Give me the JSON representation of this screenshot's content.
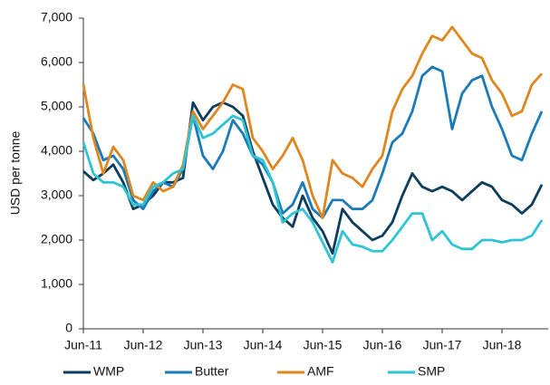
{
  "chart_data": {
    "type": "line",
    "y_label": "USD per tonne",
    "categories": [
      "Jun-11",
      null,
      null,
      null,
      null,
      null,
      "Jun-12",
      null,
      null,
      null,
      null,
      null,
      "Jun-13",
      null,
      null,
      null,
      null,
      null,
      "Jun-14",
      null,
      null,
      null,
      null,
      null,
      "Jun-15",
      null,
      null,
      null,
      null,
      null,
      "Jun-16",
      null,
      null,
      null,
      null,
      null,
      "Jun-17",
      null,
      null,
      null,
      null,
      null,
      "Jun-18",
      null,
      null,
      null,
      null
    ],
    "series": [
      {
        "name": "WMP",
        "color": "#0d3d5c",
        "values": [
          3550,
          3350,
          3500,
          3700,
          3300,
          2700,
          2800,
          3000,
          3300,
          3300,
          3400,
          5100,
          4700,
          5000,
          5100,
          5000,
          4800,
          4000,
          3400,
          2800,
          2500,
          2300,
          3000,
          2500,
          2200,
          1700,
          2700,
          2400,
          2200,
          2000,
          2100,
          2400,
          3000,
          3500,
          3200,
          3100,
          3200,
          3100,
          2900,
          3100,
          3300,
          3200,
          2900,
          2800,
          2600,
          2800,
          3250
        ]
      },
      {
        "name": "Butter",
        "color": "#1a7bb8",
        "values": [
          4750,
          4400,
          3800,
          3900,
          3600,
          2900,
          2700,
          3100,
          3300,
          3200,
          3600,
          4800,
          3900,
          3600,
          4000,
          4700,
          4400,
          3900,
          3700,
          3300,
          2600,
          2800,
          3300,
          2700,
          2500,
          2900,
          2900,
          2700,
          2700,
          2900,
          3500,
          4200,
          4400,
          4900,
          5700,
          5900,
          5800,
          4500,
          5300,
          5600,
          5700,
          5000,
          4500,
          3900,
          3800,
          4400,
          4900
        ]
      },
      {
        "name": "AMF",
        "color": "#e0861e",
        "values": [
          5500,
          4300,
          3500,
          4100,
          3800,
          3000,
          2900,
          3300,
          3100,
          3200,
          3700,
          4900,
          4500,
          4800,
          5100,
          5500,
          5400,
          4300,
          4000,
          3600,
          3900,
          4300,
          3800,
          3000,
          2500,
          3800,
          3500,
          3400,
          3200,
          3600,
          3900,
          4900,
          5400,
          5700,
          6200,
          6600,
          6500,
          6800,
          6500,
          6200,
          6100,
          5600,
          5300,
          4800,
          4900,
          5500,
          5750
        ]
      },
      {
        "name": "SMP",
        "color": "#2ec4d4",
        "values": [
          4200,
          3500,
          3300,
          3300,
          3200,
          2800,
          2800,
          3200,
          3300,
          3500,
          3600,
          4800,
          4300,
          4400,
          4600,
          4800,
          4700,
          3900,
          3800,
          3300,
          2400,
          2600,
          2700,
          2400,
          1950,
          1500,
          2200,
          1900,
          1850,
          1750,
          1750,
          2000,
          2300,
          2600,
          2600,
          2000,
          2200,
          1900,
          1800,
          1800,
          2000,
          2000,
          1950,
          2000,
          2000,
          2100,
          2450
        ]
      }
    ],
    "ylim": [
      0,
      7000
    ],
    "yticks": [
      0,
      {
        "value": 1000,
        "label": "1,000"
      },
      {
        "value": 2000,
        "label": "2,000"
      },
      {
        "value": 3000,
        "label": "3,000"
      },
      {
        "value": 4000,
        "label": "4,000"
      },
      {
        "value": 5000,
        "label": "5,000"
      },
      {
        "value": 6000,
        "label": "6,000"
      },
      {
        "value": 7000,
        "label": "7,000"
      }
    ]
  }
}
